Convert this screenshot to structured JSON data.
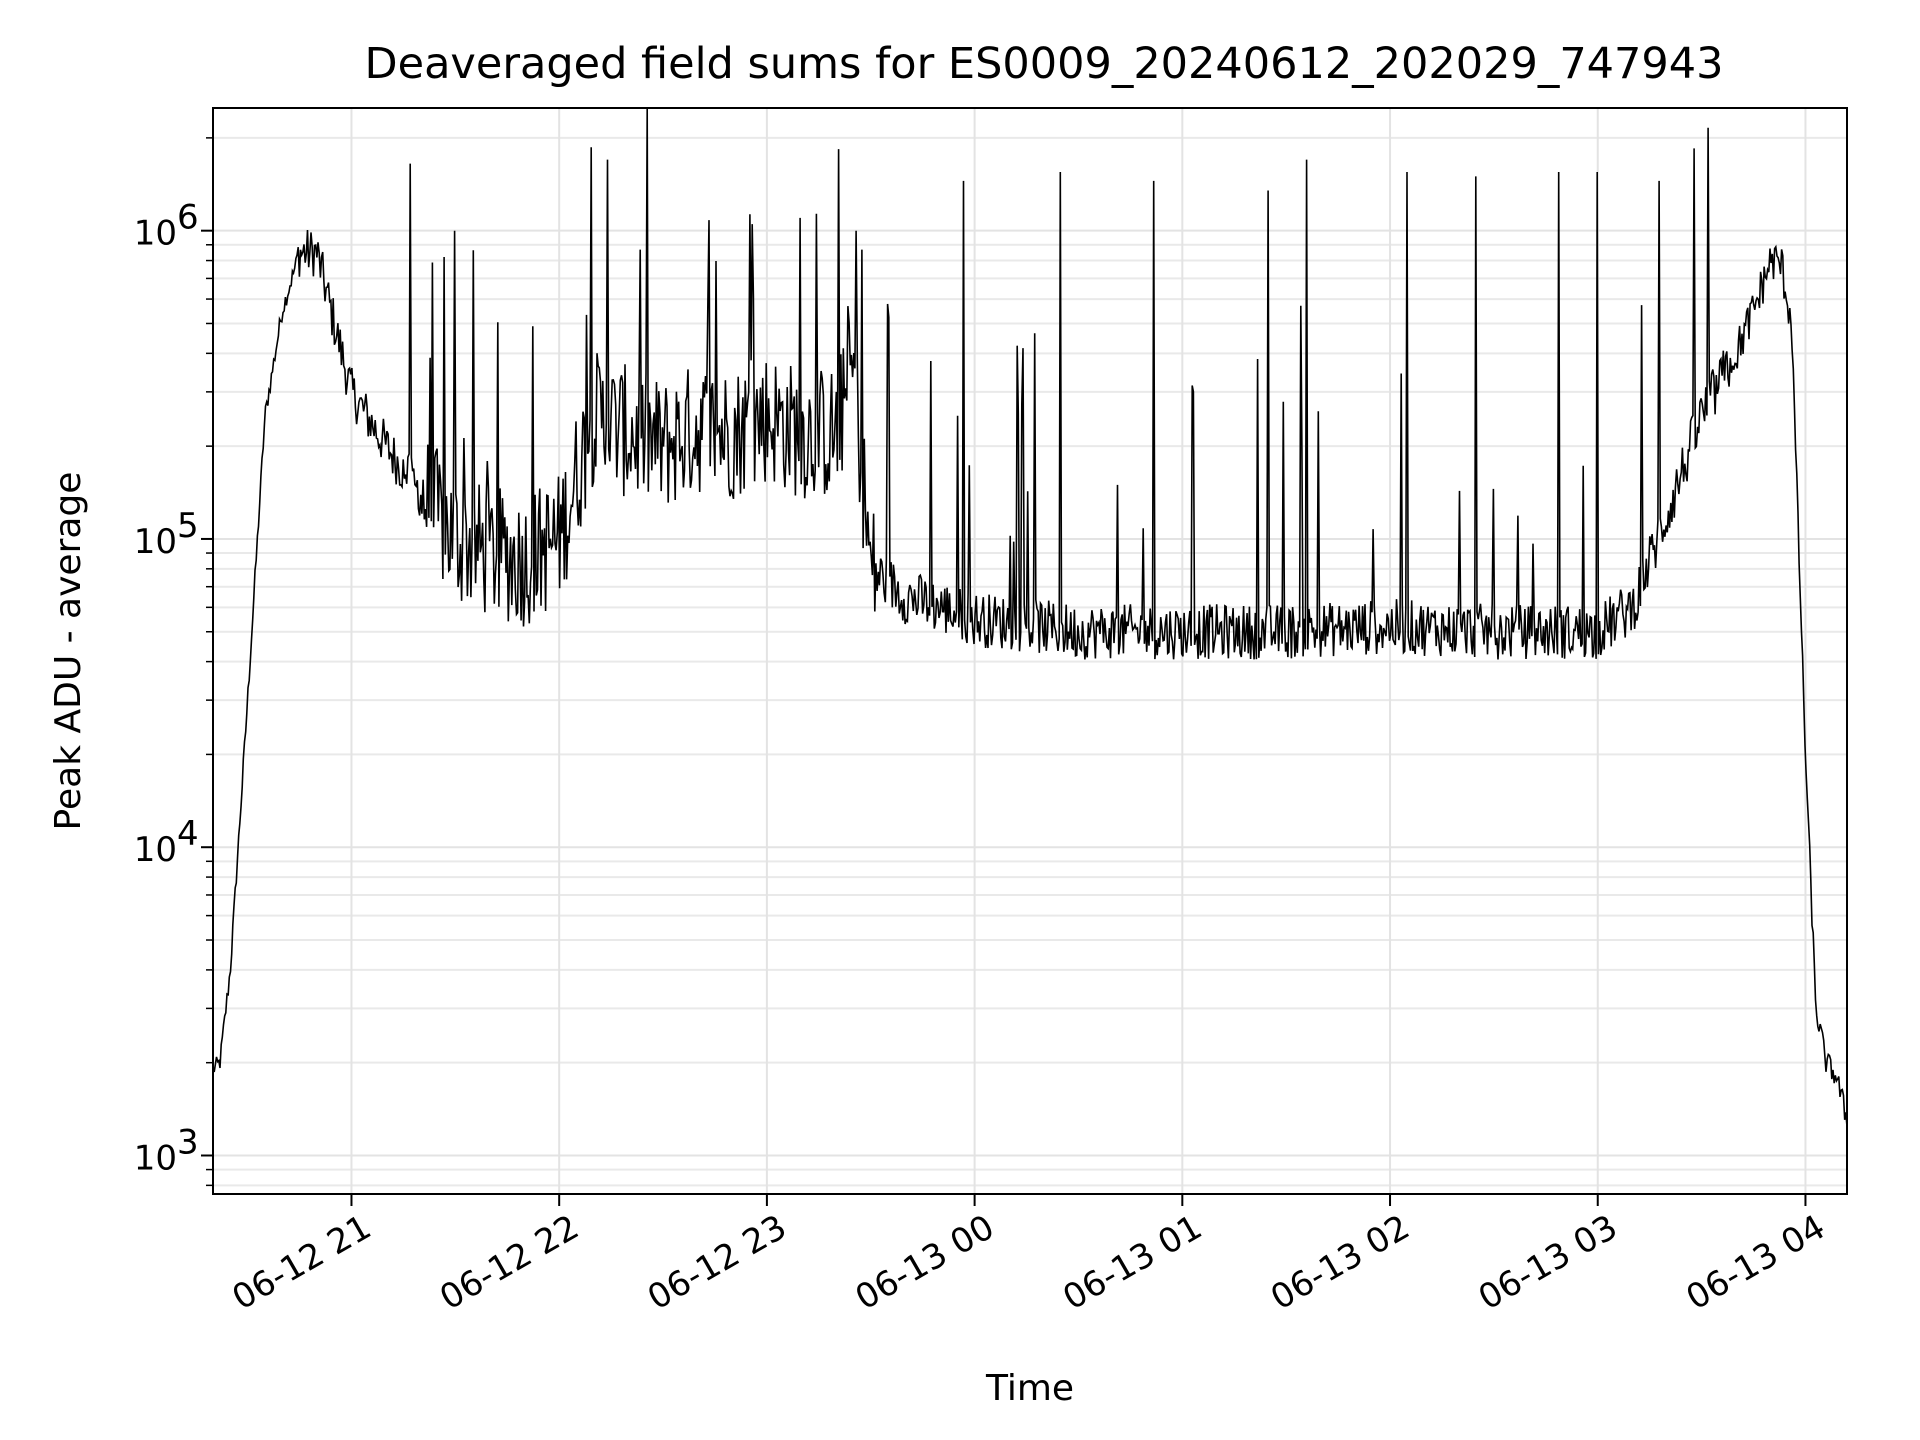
{
  "chart_data": {
    "type": "line",
    "title": "Deaveraged field sums for ES0009_20240612_202029_747943",
    "xlabel": "Time",
    "ylabel": "Peak ADU - average",
    "yscale": "log",
    "grid": "on (major and minor)",
    "line_color": "#000000",
    "grid_color": "#e3e3e3",
    "xlim": [
      "2024-06-12 20:20",
      "2024-06-13 04:12"
    ],
    "ylim": [
      750,
      2500000
    ],
    "x_tick_labels": [
      "06-12 21",
      "06-12 22",
      "06-12 23",
      "06-13 00",
      "06-13 01",
      "06-13 02",
      "06-13 03",
      "06-13 04"
    ],
    "y_tick_labels": [
      {
        "value": 1000,
        "base": "10",
        "exp": "3"
      },
      {
        "value": 10000,
        "base": "10",
        "exp": "4"
      },
      {
        "value": 100000,
        "base": "10",
        "exp": "5"
      },
      {
        "value": 1000000,
        "base": "10",
        "exp": "6"
      }
    ],
    "series": [
      {
        "x": [
          "2024-06-12 20:20",
          "2024-06-12 20:22",
          "2024-06-12 20:25",
          "2024-06-12 20:30",
          "2024-06-12 20:35",
          "2024-06-12 20:40",
          "2024-06-12 20:45",
          "2024-06-12 20:50",
          "2024-06-12 20:55",
          "2024-06-12 21:00",
          "2024-06-12 21:10",
          "2024-06-12 21:20",
          "2024-06-12 21:30",
          "2024-06-12 21:40",
          "2024-06-12 21:50",
          "2024-06-12 22:00",
          "2024-06-12 22:10",
          "2024-06-12 22:20",
          "2024-06-12 22:30",
          "2024-06-12 22:40",
          "2024-06-12 22:50",
          "2024-06-12 23:00",
          "2024-06-12 23:10",
          "2024-06-12 23:20",
          "2024-06-12 23:25",
          "2024-06-12 23:30",
          "2024-06-12 23:40",
          "2024-06-12 23:50",
          "2024-06-13 00:00",
          "2024-06-13 00:30",
          "2024-06-13 01:00",
          "2024-06-13 01:30",
          "2024-06-13 02:00",
          "2024-06-13 02:30",
          "2024-06-13 03:00",
          "2024-06-13 03:10",
          "2024-06-13 03:20",
          "2024-06-13 03:30",
          "2024-06-13 03:40",
          "2024-06-13 03:45",
          "2024-06-13 03:50",
          "2024-06-13 03:53",
          "2024-06-13 03:56",
          "2024-06-13 04:00",
          "2024-06-13 04:03",
          "2024-06-13 04:06",
          "2024-06-13 04:09",
          "2024-06-13 04:12"
        ],
        "y": [
          1900,
          2000,
          4000,
          30000,
          250000,
          550000,
          850000,
          850000,
          500000,
          300000,
          200000,
          140000,
          100000,
          90000,
          85000,
          100000,
          250000,
          220000,
          200000,
          230000,
          220000,
          250000,
          220000,
          220000,
          350000,
          80000,
          65000,
          60000,
          55000,
          50000,
          50000,
          50000,
          52000,
          50000,
          50000,
          60000,
          120000,
          250000,
          400000,
          550000,
          800000,
          780000,
          500000,
          20000,
          3000,
          2000,
          1800,
          1300
        ]
      }
    ],
    "spikes": [
      {
        "x": "2024-06-12 21:17",
        "y": 1650000
      },
      {
        "x": "2024-06-12 21:30",
        "y": 1000000
      },
      {
        "x": "2024-06-12 22:14",
        "y": 1700000
      },
      {
        "x": "2024-06-12 22:56",
        "y": 1050000
      },
      {
        "x": "2024-06-12 23:26",
        "y": 1000000
      },
      {
        "x": "2024-06-12 23:57",
        "y": 1450000
      },
      {
        "x": "2024-06-13 00:25",
        "y": 1550000
      },
      {
        "x": "2024-06-13 00:52",
        "y": 1450000
      },
      {
        "x": "2024-06-13 01:25",
        "y": 1350000
      },
      {
        "x": "2024-06-13 01:36",
        "y": 1700000
      },
      {
        "x": "2024-06-13 02:05",
        "y": 1550000
      },
      {
        "x": "2024-06-13 02:25",
        "y": 1500000
      },
      {
        "x": "2024-06-13 02:49",
        "y": 1550000
      },
      {
        "x": "2024-06-13 03:00",
        "y": 1550000
      },
      {
        "x": "2024-06-13 03:18",
        "y": 1450000
      }
    ]
  }
}
